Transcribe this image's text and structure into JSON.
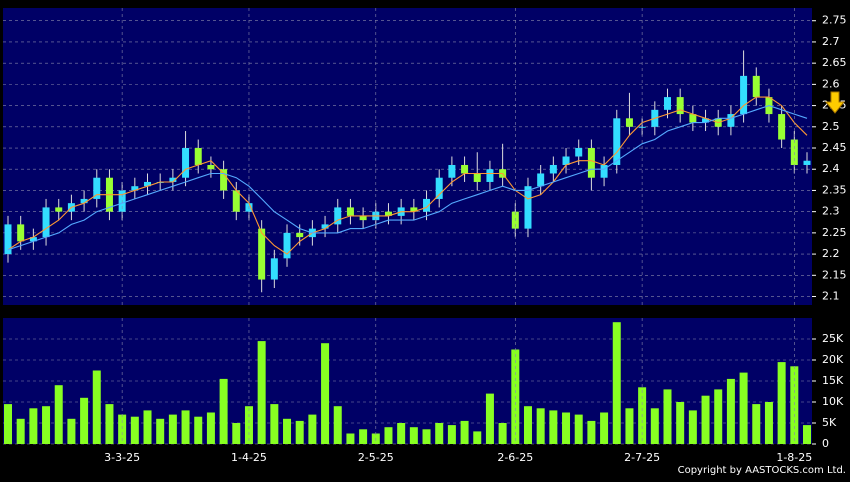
{
  "chart_data": [
    {
      "type": "candlestick",
      "up_color": "#33ddff",
      "down_color": "#99ff33",
      "open": [
        2.2,
        2.27,
        2.23,
        2.24,
        2.31,
        2.3,
        2.32,
        2.33,
        2.38,
        2.3,
        2.35,
        2.36,
        2.37,
        2.37,
        2.38,
        2.45,
        2.41,
        2.4,
        2.35,
        2.3,
        2.26,
        2.14,
        2.19,
        2.25,
        2.24,
        2.26,
        2.27,
        2.31,
        2.29,
        2.28,
        2.3,
        2.29,
        2.31,
        2.3,
        2.33,
        2.38,
        2.41,
        2.39,
        2.37,
        2.4,
        2.3,
        2.26,
        2.36,
        2.39,
        2.41,
        2.43,
        2.45,
        2.38,
        2.41,
        2.52,
        2.5,
        2.5,
        2.54,
        2.57,
        2.53,
        2.51,
        2.52,
        2.5,
        2.53,
        2.62,
        2.57,
        2.53,
        2.47,
        2.41
      ],
      "high": [
        2.29,
        2.29,
        2.26,
        2.33,
        2.33,
        2.34,
        2.35,
        2.4,
        2.4,
        2.37,
        2.38,
        2.39,
        2.39,
        2.4,
        2.49,
        2.47,
        2.43,
        2.42,
        2.37,
        2.34,
        2.28,
        2.21,
        2.27,
        2.27,
        2.28,
        2.29,
        2.33,
        2.33,
        2.31,
        2.32,
        2.32,
        2.33,
        2.33,
        2.35,
        2.4,
        2.43,
        2.43,
        2.44,
        2.42,
        2.46,
        2.32,
        2.38,
        2.41,
        2.43,
        2.45,
        2.47,
        2.47,
        2.43,
        2.54,
        2.58,
        2.52,
        2.56,
        2.59,
        2.59,
        2.55,
        2.54,
        2.54,
        2.55,
        2.68,
        2.64,
        2.59,
        2.55,
        2.49,
        2.44
      ],
      "low": [
        2.18,
        2.21,
        2.21,
        2.22,
        2.28,
        2.28,
        2.3,
        2.31,
        2.28,
        2.28,
        2.33,
        2.34,
        2.35,
        2.35,
        2.36,
        2.39,
        2.38,
        2.33,
        2.28,
        2.28,
        2.11,
        2.12,
        2.17,
        2.22,
        2.22,
        2.24,
        2.25,
        2.27,
        2.26,
        2.26,
        2.27,
        2.27,
        2.28,
        2.28,
        2.31,
        2.36,
        2.37,
        2.35,
        2.35,
        2.36,
        2.24,
        2.24,
        2.34,
        2.37,
        2.39,
        2.41,
        2.35,
        2.36,
        2.39,
        2.48,
        2.48,
        2.48,
        2.52,
        2.51,
        2.49,
        2.49,
        2.48,
        2.48,
        2.51,
        2.55,
        2.51,
        2.45,
        2.39,
        2.39
      ],
      "close": [
        2.27,
        2.23,
        2.24,
        2.31,
        2.3,
        2.32,
        2.33,
        2.38,
        2.3,
        2.35,
        2.36,
        2.37,
        2.37,
        2.38,
        2.45,
        2.41,
        2.4,
        2.35,
        2.3,
        2.32,
        2.14,
        2.19,
        2.25,
        2.24,
        2.26,
        2.27,
        2.31,
        2.29,
        2.28,
        2.3,
        2.29,
        2.31,
        2.3,
        2.33,
        2.38,
        2.41,
        2.39,
        2.37,
        2.4,
        2.38,
        2.26,
        2.36,
        2.39,
        2.41,
        2.43,
        2.45,
        2.38,
        2.41,
        2.52,
        2.5,
        2.5,
        2.54,
        2.57,
        2.53,
        2.51,
        2.52,
        2.5,
        2.53,
        2.62,
        2.57,
        2.53,
        2.47,
        2.41,
        2.42
      ],
      "series": [
        {
          "color": "#ff9933",
          "values": [
            2.21,
            2.23,
            2.24,
            2.26,
            2.28,
            2.31,
            2.32,
            2.34,
            2.34,
            2.34,
            2.35,
            2.36,
            2.37,
            2.37,
            2.4,
            2.41,
            2.42,
            2.39,
            2.35,
            2.32,
            2.25,
            2.22,
            2.2,
            2.23,
            2.25,
            2.26,
            2.28,
            2.29,
            2.29,
            2.29,
            2.29,
            2.3,
            2.3,
            2.31,
            2.34,
            2.37,
            2.39,
            2.39,
            2.39,
            2.39,
            2.35,
            2.33,
            2.34,
            2.37,
            2.41,
            2.42,
            2.42,
            2.41,
            2.44,
            2.48,
            2.51,
            2.52,
            2.53,
            2.54,
            2.53,
            2.52,
            2.51,
            2.52,
            2.55,
            2.57,
            2.57,
            2.55,
            2.51,
            2.48
          ]
        },
        {
          "color": "#55aaff",
          "values": [
            2.21,
            2.22,
            2.23,
            2.24,
            2.25,
            2.27,
            2.28,
            2.3,
            2.31,
            2.32,
            2.33,
            2.34,
            2.35,
            2.36,
            2.37,
            2.38,
            2.39,
            2.39,
            2.38,
            2.36,
            2.33,
            2.3,
            2.28,
            2.26,
            2.25,
            2.25,
            2.25,
            2.26,
            2.26,
            2.27,
            2.28,
            2.28,
            2.28,
            2.29,
            2.3,
            2.32,
            2.33,
            2.34,
            2.35,
            2.36,
            2.35,
            2.35,
            2.36,
            2.37,
            2.38,
            2.39,
            2.4,
            2.4,
            2.42,
            2.44,
            2.46,
            2.47,
            2.49,
            2.5,
            2.51,
            2.51,
            2.52,
            2.52,
            2.53,
            2.54,
            2.55,
            2.54,
            2.53,
            2.52
          ]
        }
      ],
      "ylim": [
        2.08,
        2.78
      ],
      "yticks": [
        2.1,
        2.15,
        2.2,
        2.25,
        2.3,
        2.35,
        2.4,
        2.45,
        2.5,
        2.55,
        2.6,
        2.65,
        2.7,
        2.75
      ],
      "grid": true
    },
    {
      "type": "bar",
      "color": "#88ff22",
      "categories": [
        null,
        null,
        null,
        null,
        null,
        null,
        null,
        null,
        null,
        "3-3-25",
        null,
        null,
        null,
        null,
        null,
        null,
        null,
        null,
        null,
        "1-4-25",
        null,
        null,
        null,
        null,
        null,
        null,
        null,
        null,
        null,
        "2-5-25",
        null,
        null,
        null,
        null,
        null,
        null,
        null,
        null,
        null,
        null,
        "2-6-25",
        null,
        null,
        null,
        null,
        null,
        null,
        null,
        null,
        null,
        "2-7-25",
        null,
        null,
        null,
        null,
        null,
        null,
        null,
        null,
        null,
        null,
        null,
        "1-8-25",
        null
      ],
      "values": [
        9500,
        6000,
        8500,
        9000,
        14000,
        6000,
        11000,
        17500,
        9500,
        7000,
        6500,
        8000,
        6000,
        7000,
        8000,
        6500,
        7500,
        15500,
        5000,
        9000,
        24500,
        9500,
        6000,
        5500,
        7000,
        24000,
        9000,
        2500,
        3500,
        2500,
        4000,
        5000,
        4000,
        3500,
        5000,
        4500,
        5500,
        3000,
        12000,
        5000,
        22500,
        9000,
        8500,
        8000,
        7500,
        7000,
        5500,
        7500,
        29000,
        8500,
        13500,
        8500,
        13000,
        10000,
        8000,
        11500,
        13000,
        15500,
        17000,
        9500,
        10000,
        19500,
        18500,
        4500
      ],
      "ylim": [
        0,
        30000
      ],
      "yticks": [
        0,
        {
          "value": 5000,
          "label": "5K"
        },
        {
          "value": 10000,
          "label": "10K"
        },
        {
          "value": 15000,
          "label": "15K"
        },
        {
          "value": 20000,
          "label": "20K"
        },
        {
          "value": 25000,
          "label": "25K"
        }
      ],
      "grid": true
    }
  ],
  "copyright": "Copyright by AASTOCKS.com Ltd."
}
